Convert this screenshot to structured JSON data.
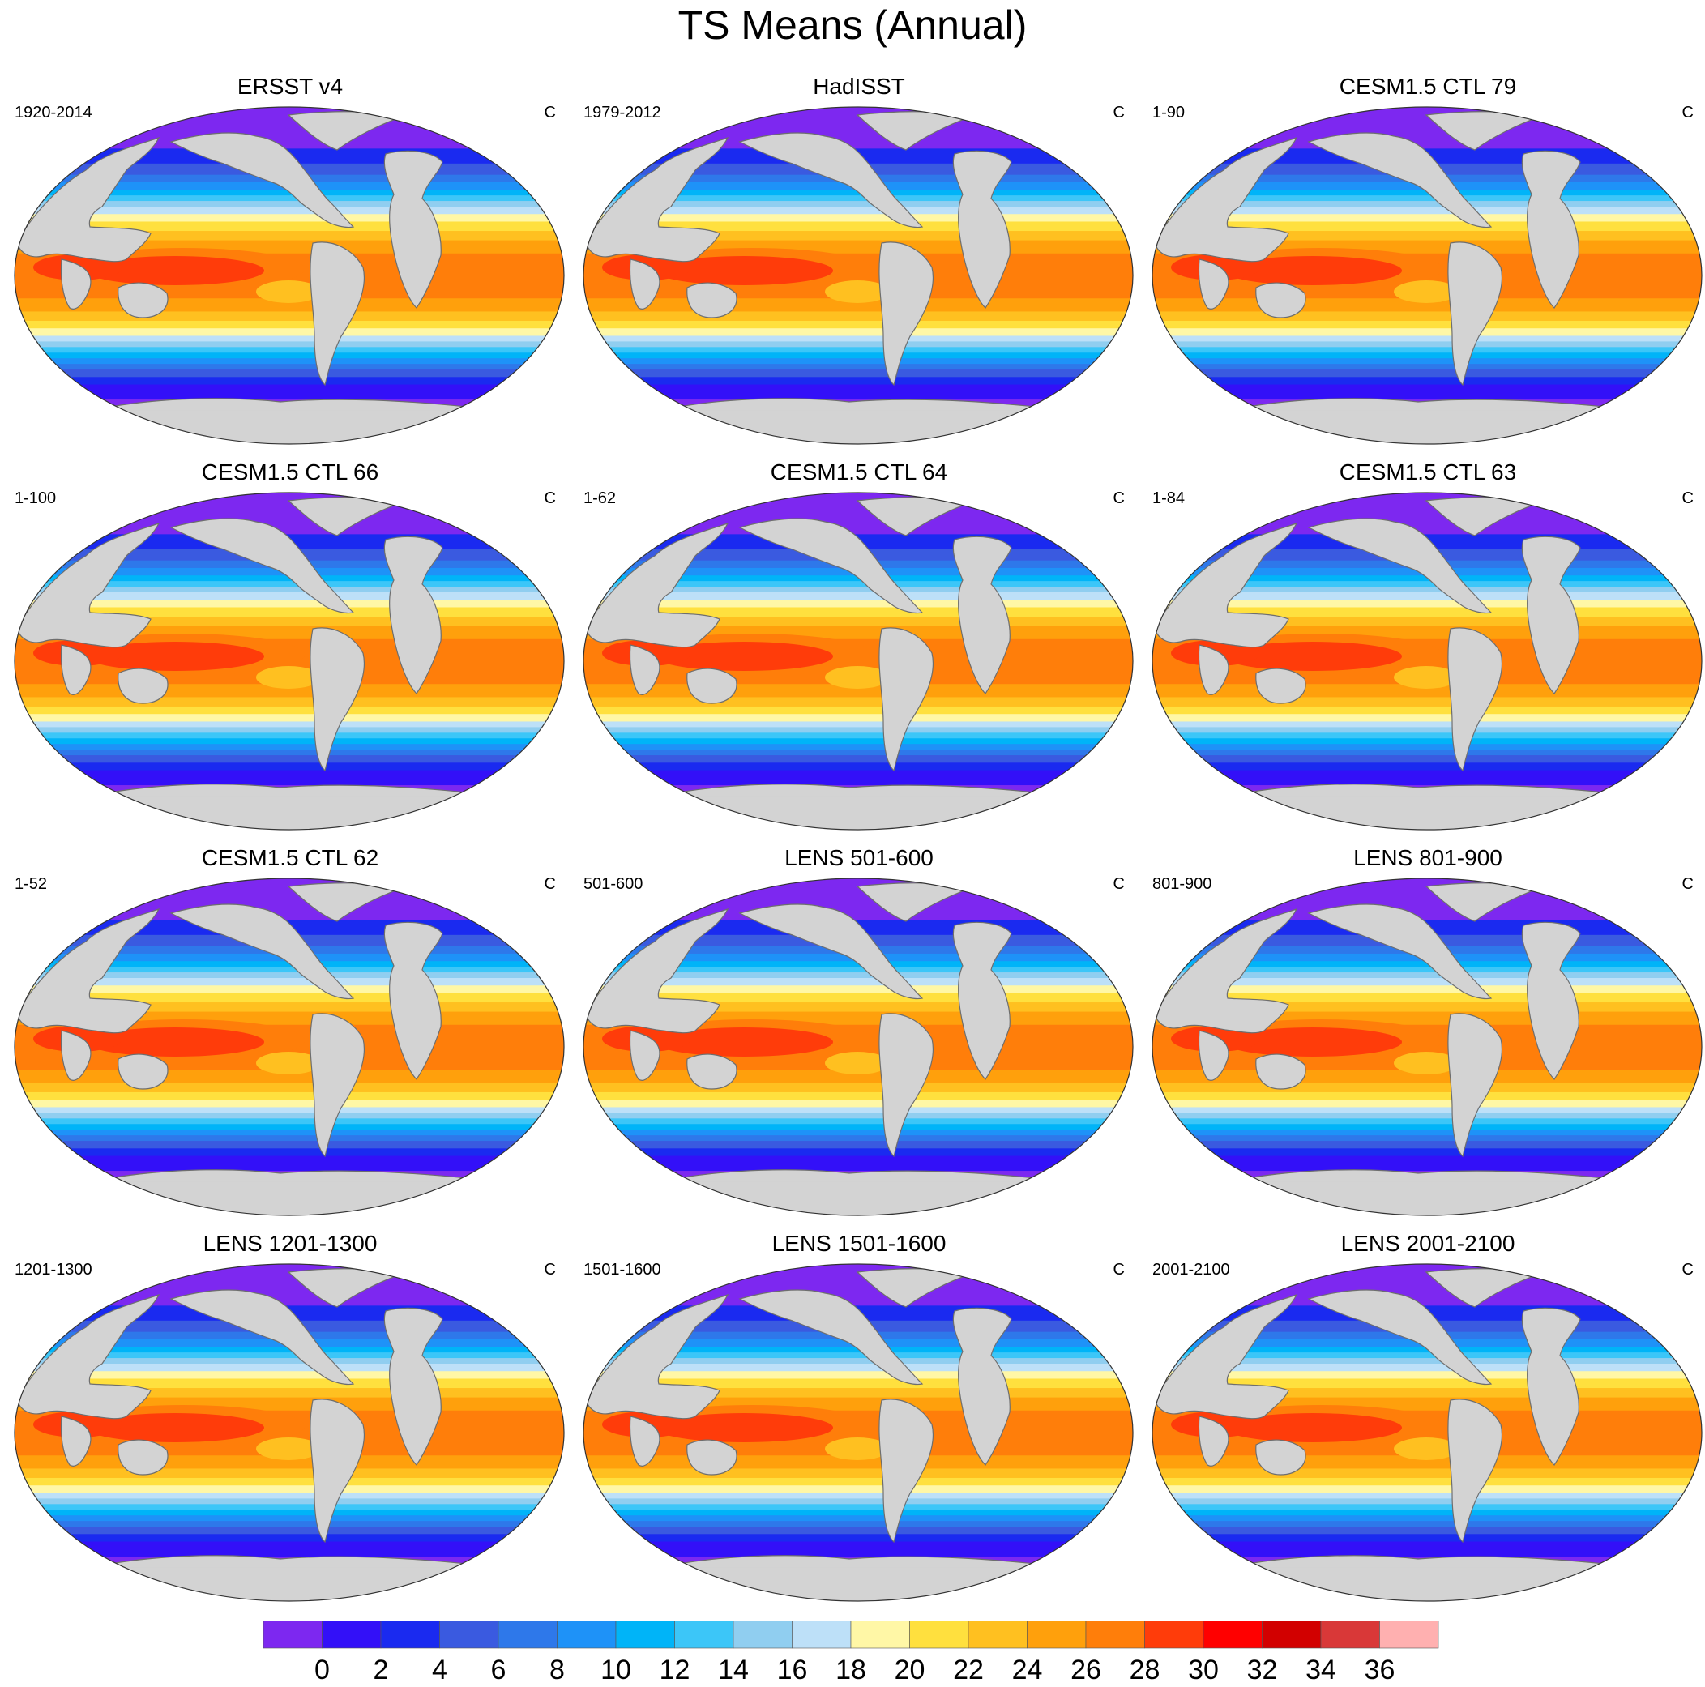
{
  "title": "TS Means (Annual)",
  "panels": [
    {
      "title": "ERSST v4",
      "period": "1920-2014",
      "units": "C"
    },
    {
      "title": "HadISST",
      "period": "1979-2012",
      "units": "C"
    },
    {
      "title": "CESM1.5 CTL 79",
      "period": "1-90",
      "units": "C"
    },
    {
      "title": "CESM1.5 CTL 66",
      "period": "1-100",
      "units": "C"
    },
    {
      "title": "CESM1.5 CTL 64",
      "period": "1-62",
      "units": "C"
    },
    {
      "title": "CESM1.5 CTL 63",
      "period": "1-84",
      "units": "C"
    },
    {
      "title": "CESM1.5 CTL 62",
      "period": "1-52",
      "units": "C"
    },
    {
      "title": "LENS 501-600",
      "period": "501-600",
      "units": "C"
    },
    {
      "title": "LENS 801-900",
      "period": "801-900",
      "units": "C"
    },
    {
      "title": "LENS 1201-1300",
      "period": "1201-1300",
      "units": "C"
    },
    {
      "title": "LENS 1501-1600",
      "period": "1501-1600",
      "units": "C"
    },
    {
      "title": "LENS 2001-2100",
      "period": "2001-2100",
      "units": "C"
    }
  ],
  "colorbar": {
    "colors": [
      "#7d28f0",
      "#3310f8",
      "#1a2af0",
      "#3a5ae0",
      "#2e78ea",
      "#1e92f8",
      "#00b4f8",
      "#3cc6f8",
      "#90cef0",
      "#bde0f8",
      "#fff7a6",
      "#ffe03e",
      "#ffc020",
      "#ffa00c",
      "#ff7e0a",
      "#ff3c0a",
      "#ff0000",
      "#d20000",
      "#d93838",
      "#ffb0b0"
    ],
    "labels": [
      "0",
      "2",
      "4",
      "6",
      "8",
      "10",
      "12",
      "14",
      "16",
      "18",
      "20",
      "22",
      "24",
      "26",
      "28",
      "30",
      "32",
      "34",
      "36"
    ]
  },
  "colors": {
    "land": "#d3d3d3",
    "coast": "#6e6e6e"
  }
}
